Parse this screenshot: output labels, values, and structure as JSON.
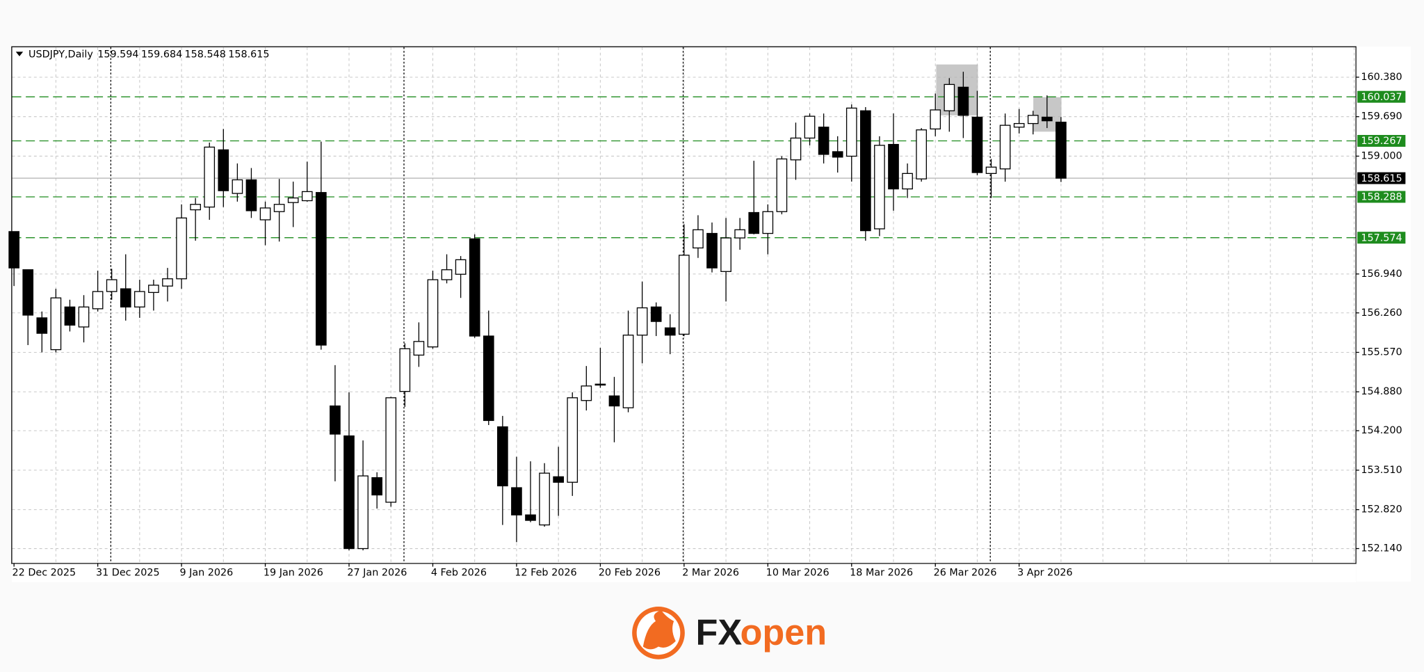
{
  "chart_data": {
    "type": "candlestick",
    "title": "USDJPY,Daily",
    "categories": [
      "22 Dec 2025",
      null,
      null,
      null,
      null,
      null,
      "31 Dec 2025",
      null,
      null,
      null,
      null,
      null,
      "9 Jan 2026",
      null,
      null,
      null,
      null,
      null,
      "19 Jan 2026",
      null,
      null,
      null,
      null,
      null,
      "27 Jan 2026",
      null,
      null,
      null,
      null,
      null,
      "4 Feb 2026",
      null,
      null,
      null,
      null,
      null,
      "12 Feb 2026",
      null,
      null,
      null,
      null,
      null,
      "20 Feb 2026",
      null,
      null,
      null,
      null,
      null,
      "2 Mar 2026",
      null,
      null,
      null,
      null,
      null,
      "10 Mar 2026",
      null,
      null,
      null,
      null,
      null,
      "18 Mar 2026",
      null,
      null,
      null,
      null,
      null,
      "26 Mar 2026",
      null,
      null,
      null,
      null,
      null,
      "3 Apr 2026",
      null,
      null,
      null
    ],
    "open": [
      157.681,
      157.014,
      156.173,
      155.617,
      156.363,
      156.014,
      156.332,
      156.633,
      156.681,
      156.363,
      156.617,
      156.729,
      156.856,
      158.062,
      158.11,
      159.11,
      158.348,
      158.586,
      157.887,
      158.03,
      158.189,
      158.221,
      158.364,
      154.633,
      154.109,
      152.14,
      153.379,
      152.95,
      154.887,
      155.522,
      155.665,
      156.84,
      156.935,
      157.554,
      155.855,
      154.268,
      153.204,
      152.728,
      152.553,
      153.395,
      153.299,
      154.728,
      154.998,
      154.808,
      154.601,
      155.871,
      156.363,
      155.998,
      155.887,
      157.395,
      157.649,
      156.983,
      157.57,
      158.014,
      157.649,
      158.03,
      158.935,
      159.316,
      159.507,
      159.078,
      158.999,
      159.793,
      157.729,
      159.205,
      158.427,
      158.602,
      159.475,
      159.793,
      160.205,
      159.681,
      158.697,
      158.777,
      159.507,
      159.57,
      159.681,
      159.594
    ],
    "high": [
      157.681,
      157.014,
      156.284,
      156.681,
      156.49,
      156.57,
      156.998,
      157.03,
      157.284,
      156.84,
      156.84,
      157.046,
      158.157,
      158.269,
      159.237,
      159.475,
      158.872,
      158.792,
      158.205,
      158.602,
      158.554,
      158.904,
      159.253,
      155.347,
      154.871,
      154.03,
      153.474,
      154.792,
      155.728,
      156.094,
      156.998,
      157.284,
      157.253,
      157.633,
      156.3,
      154.458,
      153.744,
      153.665,
      153.633,
      153.919,
      154.871,
      155.331,
      155.649,
      155.141,
      156.3,
      156.808,
      156.443,
      156.236,
      157.808,
      157.967,
      157.84,
      157.919,
      157.919,
      158.919,
      158.157,
      158.999,
      159.586,
      159.745,
      159.745,
      159.348,
      159.904,
      159.856,
      159.348,
      159.745,
      158.872,
      159.491,
      160.094,
      160.364,
      160.475,
      160.142,
      158.951,
      159.745,
      159.824,
      159.793,
      160.062,
      159.684
    ],
    "low": [
      156.729,
      155.697,
      155.57,
      155.57,
      155.935,
      155.744,
      156.284,
      156.49,
      156.125,
      156.173,
      156.3,
      156.459,
      156.681,
      157.522,
      157.887,
      158.11,
      158.205,
      157.919,
      157.443,
      157.507,
      157.76,
      158.205,
      155.617,
      153.315,
      152.109,
      152.109,
      152.839,
      152.871,
      154.617,
      155.316,
      155.633,
      156.776,
      156.522,
      155.824,
      154.299,
      152.553,
      152.252,
      152.601,
      152.522,
      152.712,
      153.061,
      154.554,
      154.95,
      153.998,
      154.522,
      155.379,
      155.855,
      155.538,
      155.855,
      157.221,
      156.967,
      156.459,
      157.364,
      157.633,
      157.284,
      157.983,
      158.586,
      159.189,
      158.872,
      158.713,
      158.554,
      157.522,
      157.602,
      158.046,
      158.269,
      158.554,
      159.348,
      159.427,
      159.316,
      158.665,
      158.269,
      158.554,
      159.396,
      159.38,
      159.491,
      158.548
    ],
    "close": [
      157.046,
      156.221,
      155.903,
      156.522,
      156.046,
      156.363,
      156.633,
      156.84,
      156.363,
      156.633,
      156.744,
      156.856,
      157.919,
      158.157,
      159.158,
      158.396,
      158.586,
      158.046,
      158.094,
      158.157,
      158.269,
      158.38,
      155.697,
      154.141,
      152.14,
      153.41,
      153.077,
      154.776,
      155.633,
      155.76,
      156.84,
      157.014,
      157.189,
      155.855,
      154.379,
      153.236,
      152.728,
      152.633,
      153.458,
      153.299,
      154.776,
      154.982,
      155.014,
      154.633,
      155.871,
      156.348,
      156.11,
      155.871,
      157.268,
      157.713,
      157.046,
      157.57,
      157.713,
      157.649,
      158.03,
      158.951,
      159.316,
      159.697,
      159.031,
      158.983,
      159.84,
      157.697,
      159.189,
      158.427,
      158.697,
      159.459,
      159.808,
      160.253,
      159.713,
      158.713,
      158.808,
      159.539,
      159.57,
      159.713,
      159.618,
      158.615
    ],
    "ylim": [
      151.887,
      160.904
    ],
    "yticks": [
      {
        "value": 160.38,
        "label": "160.380"
      },
      {
        "value": 159.69,
        "label": "159.690"
      },
      {
        "value": 159.0,
        "label": "159.000"
      },
      {
        "value": 156.94,
        "label": "156.940"
      },
      {
        "value": 156.26,
        "label": "156.260"
      },
      {
        "value": 155.57,
        "label": "155.570"
      },
      {
        "value": 154.88,
        "label": "154.880"
      },
      {
        "value": 154.2,
        "label": "154.200"
      },
      {
        "value": 153.51,
        "label": "153.510"
      },
      {
        "value": 152.82,
        "label": "152.820"
      },
      {
        "value": 152.14,
        "label": "152.140"
      }
    ],
    "grid": true,
    "up_color": "#ffffff",
    "down_color": "#000000",
    "levels": [
      160.037,
      159.267,
      158.288,
      157.574
    ],
    "level_color": "#1e8c1e"
  },
  "logo": [
    "FX",
    "open"
  ]
}
